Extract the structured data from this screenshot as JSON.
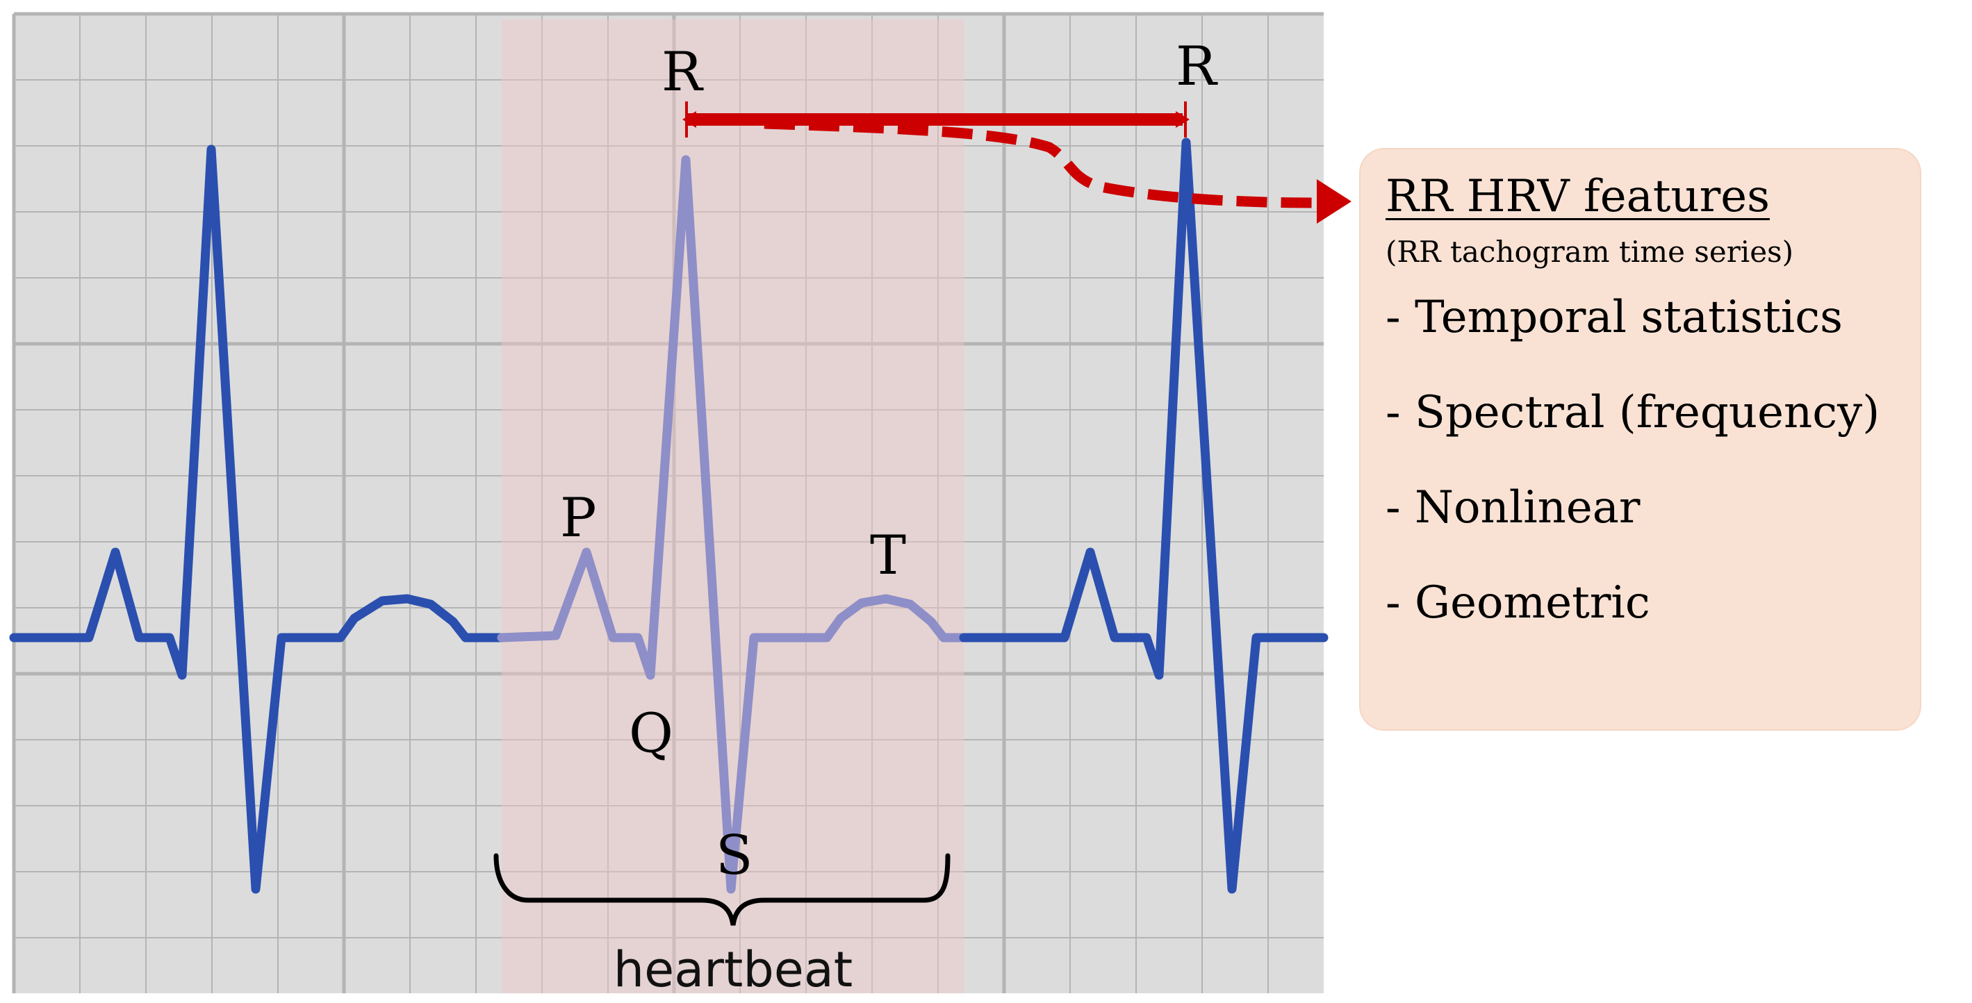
{
  "labels": {
    "r_left": "R",
    "r_right": "R",
    "p": "P",
    "q": "Q",
    "s": "S",
    "t": "T",
    "heartbeat": "heartbeat"
  },
  "feature_box": {
    "title": "RR HRV features",
    "subtitle": "(RR tachogram time series)",
    "items": [
      "- Temporal statistics",
      "- Spectral (frequency)",
      "- Nonlinear",
      "- Geometric"
    ]
  },
  "colors": {
    "grid_background": "#dcdcdc",
    "grid_line": "#b4b4b4",
    "ecg_trace": "#2a4faf",
    "ecg_trace_highlight": "#8e8ec8",
    "heartbeat_highlight": "#f0c8c8",
    "rr_arrow": "#cc0000",
    "feature_box_fill": "#f9e2d4"
  }
}
